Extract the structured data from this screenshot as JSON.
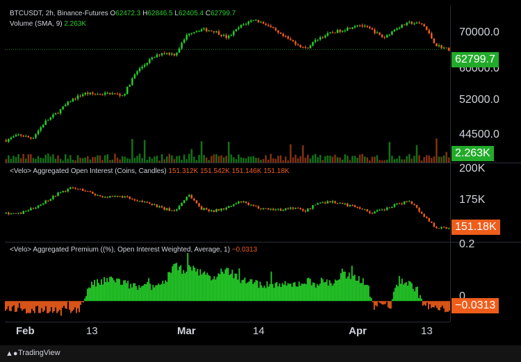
{
  "header": {
    "symbol": "BTCUSDT, 2h, Binance-Futures",
    "o_label": "O",
    "o_value": "62472.3",
    "h_label": "H",
    "h_value": "62846.5",
    "l_label": "L",
    "l_value": "62405.4",
    "c_label": "C",
    "c_value": "62799.7",
    "volume_label": "Volume (SMA, 9)",
    "volume_value": "2.263K"
  },
  "oi_legend": {
    "label": "<Velo> Aggregated Open Interest (Coins, Candles)",
    "o": "151.312K",
    "h": "151.542K",
    "l": "151.146K",
    "c": "151.18K"
  },
  "premium_legend": {
    "label": "<Velo> Aggregated Premium ((%), Open Interest Weighted, Average, 1)",
    "value": "−0.0313"
  },
  "price_axis": {
    "ticks": [
      "70000.0",
      "60000.0",
      "52000.0",
      "44500.0"
    ],
    "price_badge": "62799.7",
    "volume_badge": "2.263K"
  },
  "oi_axis": {
    "ticks": [
      "200K",
      "175K"
    ],
    "badge": "151.18K"
  },
  "premium_axis": {
    "ticks": [
      "0.2",
      "0"
    ],
    "badge": "−0.0313"
  },
  "time_axis": [
    "Feb",
    "13",
    "Mar",
    "14",
    "Apr",
    "13"
  ],
  "footer": {
    "brand": "TradingView"
  },
  "colors": {
    "up": "#26d02a",
    "down": "#ef5d1b",
    "badge_green": "#22ab2a",
    "badge_orange": "#ef5d1b"
  },
  "chart_data": [
    {
      "type": "candlestick",
      "title": "BTCUSDT, 2h, Binance-Futures",
      "x_range": [
        "Feb 1",
        "Apr 16"
      ],
      "y_scale": "log",
      "ylim": [
        40000,
        75000
      ],
      "approx_close_path": [
        42500,
        43500,
        42800,
        46000,
        48000,
        50500,
        52000,
        51800,
        52000,
        51500,
        57000,
        60000,
        62000,
        61500,
        67500,
        68500,
        68000,
        66000,
        69500,
        71500,
        70000,
        67000,
        65000,
        63000,
        66000,
        67500,
        68500,
        70000,
        68500,
        66000,
        69000,
        70500,
        70000,
        64000,
        62800
      ],
      "last": {
        "o": 62472.3,
        "h": 62846.5,
        "l": 62405.4,
        "c": 62799.7
      }
    },
    {
      "type": "bar",
      "title": "Volume (SMA, 9)",
      "last_value": "2.263K"
    },
    {
      "type": "candlestick",
      "title": "<Velo> Aggregated Open Interest (Coins, Candles)",
      "ylim": [
        140000,
        210000
      ],
      "approx_close_path": [
        166000,
        165000,
        170000,
        177000,
        185000,
        190000,
        188000,
        183000,
        181000,
        182000,
        177000,
        176000,
        170000,
        168000,
        184000,
        170000,
        168000,
        171000,
        177000,
        172000,
        170000,
        169000,
        171000,
        168000,
        176000,
        177000,
        174000,
        172000,
        166000,
        169000,
        174000,
        178000,
        164000,
        152000,
        151180
      ],
      "last": {
        "o": 151312,
        "h": 151542,
        "l": 151146,
        "c": 151180
      }
    },
    {
      "type": "bar",
      "title": "<Velo> Aggregated Premium ((%), Open Interest Weighted, Average, 1)",
      "ylim": [
        -0.08,
        0.25
      ],
      "approx_values": [
        -0.04,
        -0.03,
        -0.05,
        -0.045,
        -0.04,
        -0.035,
        -0.045,
        -0.05,
        -0.04,
        -0.03,
        0.07,
        0.08,
        0.09,
        0.1,
        0.08,
        0.07,
        0.06,
        0.06,
        0.07,
        0.08,
        0.16,
        0.14,
        0.15,
        0.13,
        0.12,
        0.1,
        0.14,
        0.13,
        0.1,
        0.09,
        0.08,
        0.07,
        0.08,
        0.07,
        0.07,
        0.08,
        0.09,
        0.08,
        0.09,
        0.08,
        0.11,
        0.12,
        0.1,
        0.09,
        -0.02,
        -0.01,
        -0.02,
        0.1,
        0.08,
        0.06,
        -0.02,
        -0.03,
        -0.04,
        -0.0313
      ],
      "last_value": -0.0313
    }
  ]
}
